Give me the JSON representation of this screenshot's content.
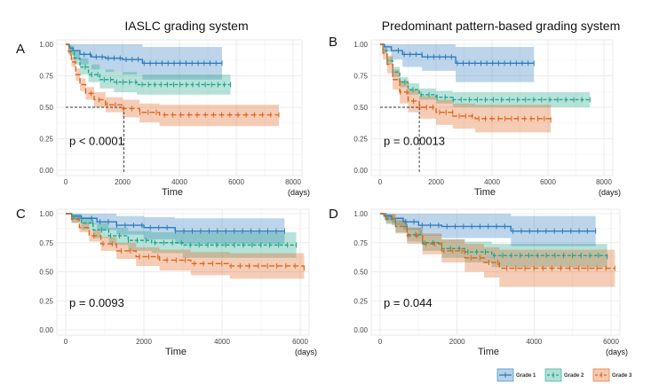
{
  "column_titles": [
    "IASLC grading system",
    "Predominant pattern-based grading system"
  ],
  "legend": {
    "entries": [
      "Grade 1",
      "Grade 2",
      "Grade 3"
    ],
    "colors": [
      "#2e7bbf",
      "#1fa58a",
      "#e0641b"
    ]
  },
  "chart_data": [
    {
      "panel": "A",
      "type": "line",
      "subtype": "kaplan-meier",
      "xlabel": "Time",
      "xunit": "(days)",
      "xlim": [
        0,
        8000
      ],
      "ylim": [
        0,
        1
      ],
      "xticks": [
        0,
        2000,
        4000,
        6000,
        8000
      ],
      "yticks": [
        "0.00",
        "0.25",
        "0.50",
        "0.75",
        "1.00"
      ],
      "annotation": "p < 0.0001",
      "median_marker": {
        "x": 2050,
        "y": 0.5
      },
      "series": [
        {
          "name": "Grade 1",
          "x": [
            0,
            120,
            260,
            500,
            900,
            1400,
            2000,
            2700,
            5500
          ],
          "y": [
            1.0,
            0.97,
            0.95,
            0.92,
            0.9,
            0.89,
            0.88,
            0.85,
            0.85
          ],
          "lower": [
            1.0,
            0.92,
            0.88,
            0.84,
            0.8,
            0.78,
            0.76,
            0.72,
            0.72
          ],
          "upper": [
            1.0,
            1.0,
            1.0,
            1.0,
            1.0,
            1.0,
            1.0,
            0.98,
            0.98
          ]
        },
        {
          "name": "Grade 2",
          "x": [
            0,
            150,
            300,
            500,
            800,
            1200,
            1700,
            2500,
            5800
          ],
          "y": [
            1.0,
            0.95,
            0.89,
            0.82,
            0.76,
            0.72,
            0.7,
            0.68,
            0.68
          ],
          "lower": [
            1.0,
            0.91,
            0.84,
            0.76,
            0.7,
            0.65,
            0.62,
            0.6,
            0.6
          ],
          "upper": [
            1.0,
            0.99,
            0.95,
            0.89,
            0.84,
            0.8,
            0.78,
            0.76,
            0.76
          ]
        },
        {
          "name": "Grade 3",
          "x": [
            0,
            100,
            200,
            350,
            500,
            700,
            1000,
            1400,
            2000,
            2600,
            3300,
            7500
          ],
          "y": [
            1.0,
            0.94,
            0.86,
            0.76,
            0.68,
            0.61,
            0.56,
            0.52,
            0.49,
            0.46,
            0.44,
            0.44
          ],
          "lower": [
            1.0,
            0.91,
            0.82,
            0.71,
            0.63,
            0.56,
            0.5,
            0.46,
            0.42,
            0.38,
            0.35,
            0.35
          ],
          "upper": [
            1.0,
            0.97,
            0.9,
            0.81,
            0.73,
            0.66,
            0.62,
            0.58,
            0.56,
            0.53,
            0.52,
            0.52
          ]
        }
      ]
    },
    {
      "panel": "B",
      "type": "line",
      "subtype": "kaplan-meier",
      "xlabel": "Time",
      "xunit": "(days)",
      "xlim": [
        0,
        8000
      ],
      "ylim": [
        0,
        1
      ],
      "xticks": [
        0,
        2000,
        4000,
        6000,
        8000
      ],
      "yticks": [
        "0.00",
        "0.25",
        "0.50",
        "0.75",
        "1.00"
      ],
      "annotation": "p = 0.00013",
      "median_marker": {
        "x": 1400,
        "y": 0.5
      },
      "series": [
        {
          "name": "Grade 1",
          "x": [
            0,
            150,
            400,
            800,
            1500,
            2700,
            5500
          ],
          "y": [
            1.0,
            0.98,
            0.95,
            0.92,
            0.9,
            0.85,
            0.85
          ],
          "lower": [
            1.0,
            0.94,
            0.88,
            0.82,
            0.79,
            0.7,
            0.7
          ],
          "upper": [
            1.0,
            1.0,
            1.0,
            1.0,
            1.0,
            0.98,
            0.98
          ]
        },
        {
          "name": "Grade 2",
          "x": [
            0,
            100,
            250,
            450,
            700,
            1000,
            1400,
            2000,
            2600,
            7500
          ],
          "y": [
            1.0,
            0.95,
            0.87,
            0.78,
            0.7,
            0.64,
            0.6,
            0.58,
            0.56,
            0.56
          ],
          "lower": [
            1.0,
            0.93,
            0.84,
            0.74,
            0.66,
            0.6,
            0.56,
            0.53,
            0.5,
            0.5
          ],
          "upper": [
            1.0,
            0.97,
            0.9,
            0.82,
            0.74,
            0.69,
            0.65,
            0.63,
            0.62,
            0.62
          ]
        },
        {
          "name": "Grade 3",
          "x": [
            0,
            100,
            250,
            450,
            700,
            1000,
            1400,
            2000,
            2600,
            3400,
            6100
          ],
          "y": [
            1.0,
            0.93,
            0.84,
            0.72,
            0.62,
            0.55,
            0.5,
            0.46,
            0.43,
            0.41,
            0.4
          ],
          "lower": [
            1.0,
            0.88,
            0.77,
            0.64,
            0.53,
            0.46,
            0.41,
            0.36,
            0.33,
            0.3,
            0.29
          ],
          "upper": [
            1.0,
            0.98,
            0.91,
            0.8,
            0.71,
            0.64,
            0.59,
            0.56,
            0.53,
            0.52,
            0.51
          ]
        }
      ]
    },
    {
      "panel": "C",
      "type": "line",
      "subtype": "kaplan-meier",
      "xlabel": "Time",
      "xunit": "(days)",
      "xlim": [
        0,
        6000
      ],
      "ylim": [
        0,
        1
      ],
      "xticks": [
        0,
        2000,
        4000,
        6000
      ],
      "yticks": [
        "0.00",
        "0.25",
        "0.50",
        "0.75",
        "1.00"
      ],
      "annotation": "p = 0.0093",
      "series": [
        {
          "name": "Grade 1",
          "x": [
            0,
            150,
            400,
            800,
            1300,
            2000,
            2800,
            5600
          ],
          "y": [
            1.0,
            0.98,
            0.96,
            0.93,
            0.9,
            0.88,
            0.85,
            0.85
          ],
          "lower": [
            1.0,
            0.95,
            0.91,
            0.86,
            0.82,
            0.78,
            0.74,
            0.74
          ],
          "upper": [
            1.0,
            1.0,
            1.0,
            1.0,
            0.98,
            0.97,
            0.96,
            0.96
          ]
        },
        {
          "name": "Grade 2",
          "x": [
            0,
            150,
            400,
            700,
            1100,
            1600,
            2200,
            3000,
            5900
          ],
          "y": [
            1.0,
            0.96,
            0.92,
            0.86,
            0.81,
            0.77,
            0.75,
            0.73,
            0.73
          ],
          "lower": [
            1.0,
            0.92,
            0.86,
            0.79,
            0.73,
            0.68,
            0.66,
            0.62,
            0.62
          ],
          "upper": [
            1.0,
            1.0,
            0.97,
            0.92,
            0.88,
            0.85,
            0.84,
            0.84,
            0.84
          ]
        },
        {
          "name": "Grade 3",
          "x": [
            0,
            150,
            350,
            600,
            900,
            1300,
            1800,
            2400,
            3200,
            4200,
            6100
          ],
          "y": [
            1.0,
            0.95,
            0.88,
            0.81,
            0.74,
            0.68,
            0.63,
            0.6,
            0.57,
            0.55,
            0.53
          ],
          "lower": [
            1.0,
            0.92,
            0.84,
            0.76,
            0.68,
            0.61,
            0.55,
            0.51,
            0.47,
            0.44,
            0.42
          ],
          "upper": [
            1.0,
            0.98,
            0.92,
            0.86,
            0.8,
            0.75,
            0.71,
            0.69,
            0.67,
            0.66,
            0.64
          ]
        }
      ]
    },
    {
      "panel": "D",
      "type": "line",
      "subtype": "kaplan-meier",
      "xlabel": "Time",
      "xunit": "(days)",
      "xlim": [
        0,
        6000
      ],
      "ylim": [
        0,
        1
      ],
      "xticks": [
        0,
        2000,
        4000,
        6000
      ],
      "yticks": [
        "0.00",
        "0.25",
        "0.50",
        "0.75",
        "1.00"
      ],
      "annotation": "p = 0.044",
      "series": [
        {
          "name": "Grade 1",
          "x": [
            0,
            100,
            300,
            600,
            1000,
            1600,
            3400,
            5600
          ],
          "y": [
            1.0,
            0.98,
            0.96,
            0.93,
            0.9,
            0.89,
            0.85,
            0.85
          ],
          "lower": [
            1.0,
            0.95,
            0.9,
            0.86,
            0.81,
            0.79,
            0.72,
            0.72
          ],
          "upper": [
            1.0,
            1.0,
            1.0,
            1.0,
            1.0,
            1.0,
            0.98,
            0.98
          ]
        },
        {
          "name": "Grade 2",
          "x": [
            0,
            150,
            400,
            700,
            1100,
            1600,
            2200,
            2900,
            5900
          ],
          "y": [
            1.0,
            0.95,
            0.89,
            0.82,
            0.75,
            0.7,
            0.67,
            0.64,
            0.63
          ],
          "lower": [
            1.0,
            0.91,
            0.84,
            0.76,
            0.68,
            0.62,
            0.58,
            0.54,
            0.53
          ],
          "upper": [
            1.0,
            0.99,
            0.94,
            0.88,
            0.82,
            0.78,
            0.76,
            0.74,
            0.73
          ]
        },
        {
          "name": "Grade 3",
          "x": [
            0,
            150,
            400,
            700,
            1100,
            1600,
            2200,
            2700,
            3100,
            6100
          ],
          "y": [
            1.0,
            0.96,
            0.89,
            0.81,
            0.74,
            0.68,
            0.62,
            0.58,
            0.53,
            0.53
          ],
          "lower": [
            1.0,
            0.92,
            0.83,
            0.74,
            0.65,
            0.58,
            0.5,
            0.45,
            0.37,
            0.37
          ],
          "upper": [
            1.0,
            1.0,
            0.95,
            0.88,
            0.83,
            0.78,
            0.74,
            0.71,
            0.69,
            0.69
          ]
        }
      ]
    }
  ]
}
